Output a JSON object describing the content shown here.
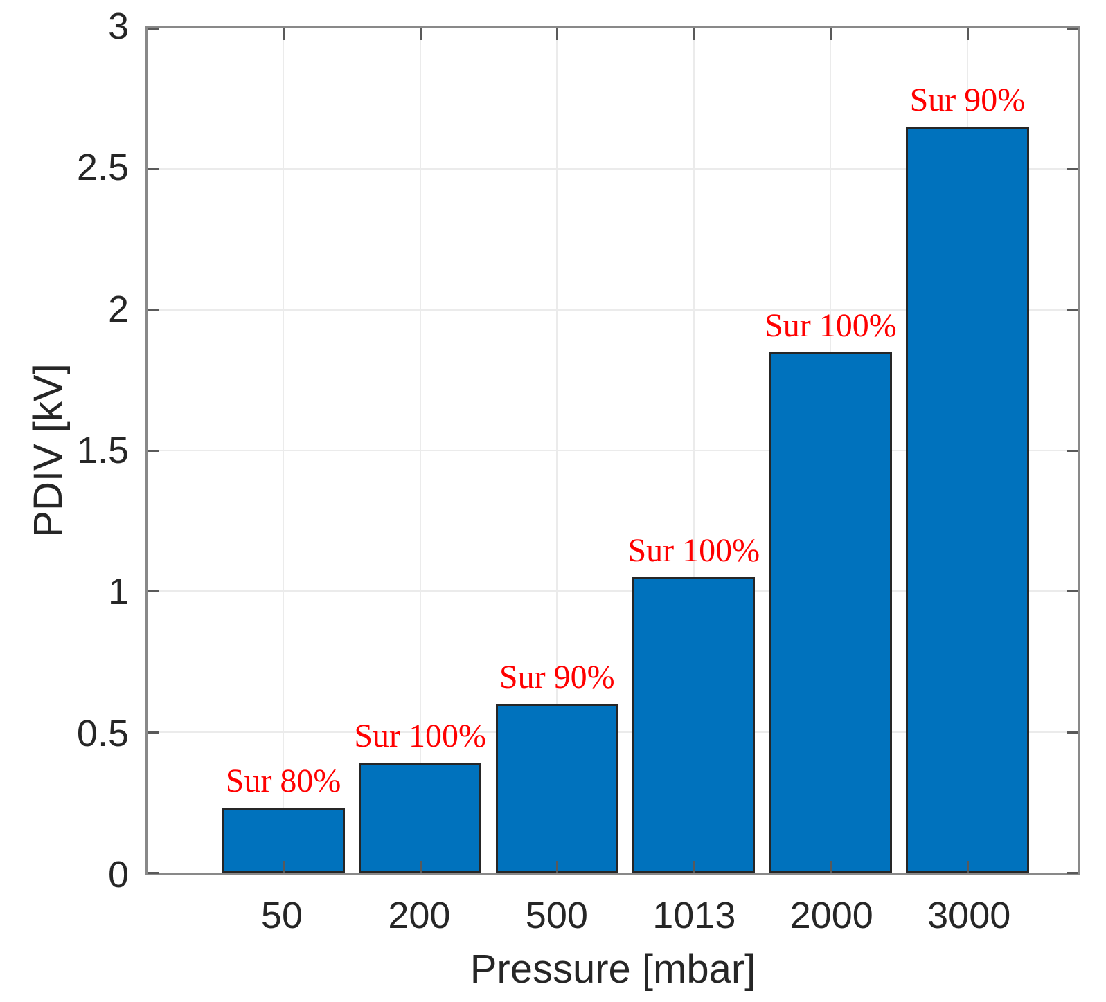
{
  "chart_data": {
    "type": "bar",
    "title": "",
    "xlabel": "Pressure [mbar]",
    "ylabel": "PDIV [kV]",
    "categories": [
      "50",
      "200",
      "500",
      "1013",
      "2000",
      "3000"
    ],
    "values": [
      0.23,
      0.39,
      0.6,
      1.05,
      1.85,
      2.65
    ],
    "bar_annotations": [
      "Sur 80%",
      "Sur 100%",
      "Sur 90%",
      "Sur 100%",
      "Sur 100%",
      "Sur 90%"
    ],
    "ylim": [
      0,
      3
    ],
    "yticks": [
      0,
      0.5,
      1,
      1.5,
      2,
      2.5,
      3
    ],
    "ytick_labels": [
      "0",
      "0.5",
      "1",
      "1.5",
      "2",
      "2.5",
      "3"
    ],
    "grid": true,
    "legend": "none",
    "colors": {
      "bar_fill": "#0072BD",
      "bar_edge": "#262626",
      "annotation_text": "#FF0000",
      "grid_line": "#EBEBEB",
      "axis_box": "#898989",
      "tick_mark": "#595959",
      "tick_label": "#262626",
      "background": "#FFFFFF"
    }
  }
}
